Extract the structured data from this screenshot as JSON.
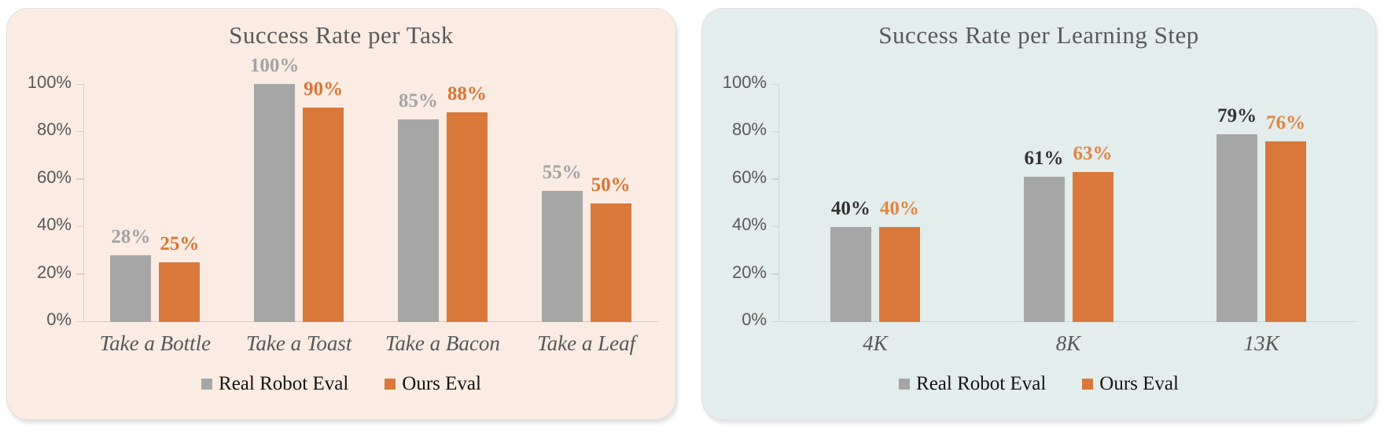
{
  "page": {
    "background": "#ffffff"
  },
  "chart_data": [
    {
      "type": "bar",
      "title": "Success Rate per Task",
      "background": "#FAECE2",
      "axis_color": "#D8CEC6",
      "categories": [
        "Take a Bottle",
        "Take a Toast",
        "Take a Bacon",
        "Take a Leaf"
      ],
      "series": [
        {
          "name": "Real Robot Eval",
          "color": "#A6A6A6",
          "label_color": "#A3A3A3",
          "values": [
            28,
            100,
            85,
            55
          ]
        },
        {
          "name": "Ours Eval",
          "color": "#DA783C",
          "label_color": "#DB7434",
          "values": [
            25,
            90,
            88,
            50
          ]
        }
      ],
      "value_suffix": "%",
      "ylabel_ticks": [
        "0%",
        "20%",
        "40%",
        "60%",
        "80%",
        "100%"
      ],
      "ylim": [
        0,
        100
      ],
      "xlabel": "",
      "ylabel": "",
      "grid": false,
      "legend_position": "bottom"
    },
    {
      "type": "bar",
      "title": "Success Rate per Learning Step",
      "background": "#E3EDEB",
      "axis_color": "#CBD6D3",
      "categories": [
        "4K",
        "8K",
        "13K"
      ],
      "series": [
        {
          "name": "Real Robot Eval",
          "color": "#A6A6A6",
          "label_color": "#333333",
          "values": [
            40,
            61,
            79
          ]
        },
        {
          "name": "Ours Eval",
          "color": "#DA783C",
          "label_color": "#E18544",
          "values": [
            40,
            63,
            76
          ]
        }
      ],
      "value_suffix": "%",
      "ylabel_ticks": [
        "0%",
        "20%",
        "40%",
        "60%",
        "80%",
        "100%"
      ],
      "ylim": [
        0,
        100
      ],
      "xlabel": "",
      "ylabel": "",
      "grid": false,
      "legend_position": "bottom"
    }
  ]
}
